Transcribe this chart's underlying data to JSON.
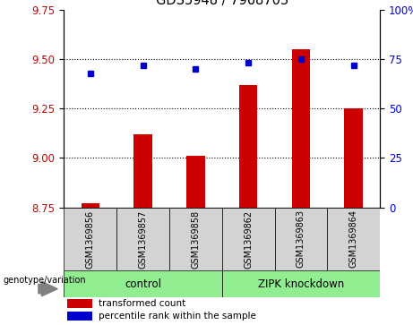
{
  "title": "GDS5948 / 7968703",
  "samples": [
    "GSM1369856",
    "GSM1369857",
    "GSM1369858",
    "GSM1369862",
    "GSM1369863",
    "GSM1369864"
  ],
  "bar_values": [
    8.77,
    9.12,
    9.01,
    9.37,
    9.55,
    9.25
  ],
  "bar_base": 8.75,
  "percentile_values": [
    68,
    72,
    70,
    73,
    75,
    72
  ],
  "bar_color": "#cc0000",
  "dot_color": "#0000cc",
  "ylim_left": [
    8.75,
    9.75
  ],
  "ylim_right": [
    0,
    100
  ],
  "yticks_left": [
    8.75,
    9.0,
    9.25,
    9.5,
    9.75
  ],
  "yticks_right": [
    0,
    25,
    50,
    75,
    100
  ],
  "ytick_labels_right": [
    "0",
    "25",
    "50",
    "75",
    "100%"
  ],
  "grid_values": [
    9.0,
    9.25,
    9.5
  ],
  "groups": [
    {
      "label": "control",
      "indices": [
        0,
        1,
        2
      ],
      "color": "#90ee90"
    },
    {
      "label": "ZIPK knockdown",
      "indices": [
        3,
        4,
        5
      ],
      "color": "#90ee90"
    }
  ],
  "group_label_prefix": "genotype/variation",
  "legend_bar_label": "transformed count",
  "legend_dot_label": "percentile rank within the sample",
  "bar_width": 0.35,
  "left_axis_color": "#cc0000",
  "right_axis_color": "#0000cc"
}
